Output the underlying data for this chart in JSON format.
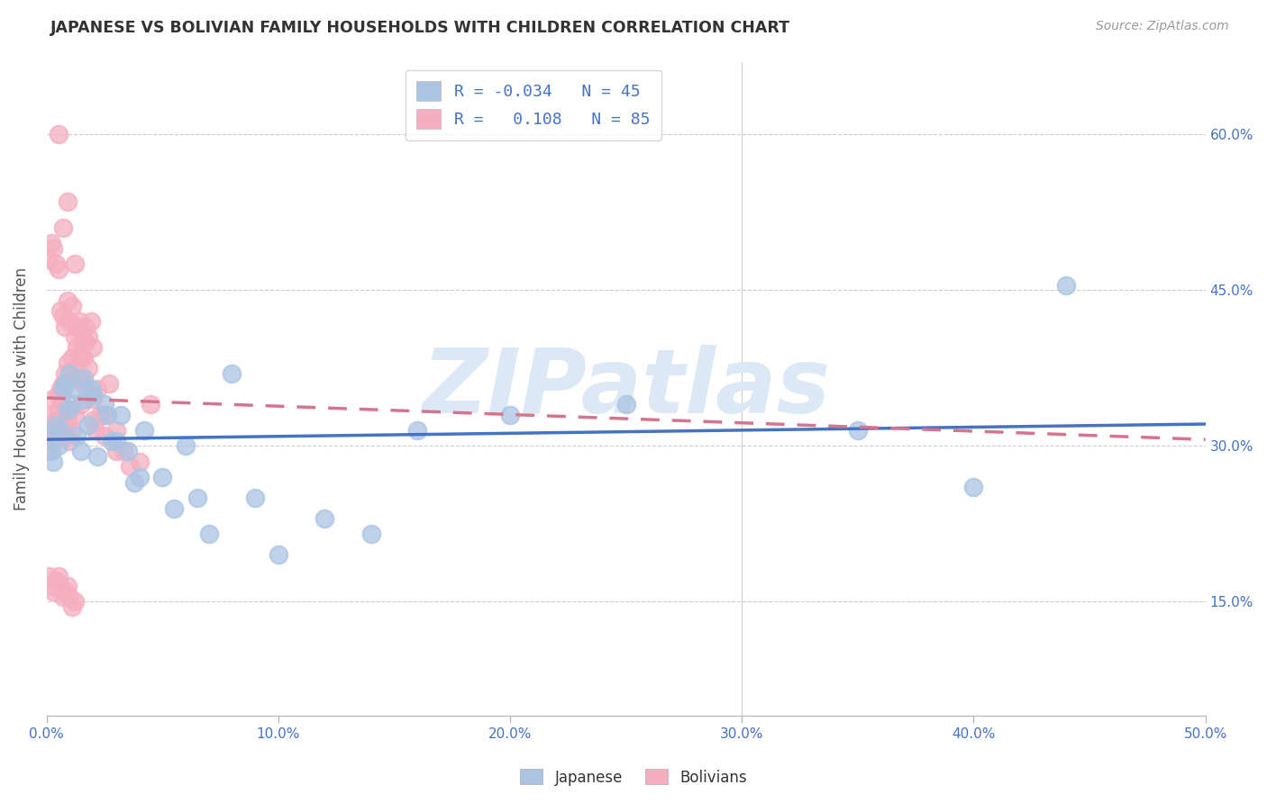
{
  "title": "JAPANESE VS BOLIVIAN FAMILY HOUSEHOLDS WITH CHILDREN CORRELATION CHART",
  "source": "Source: ZipAtlas.com",
  "ylabel_label": "Family Households with Children",
  "xlim": [
    0.0,
    0.5
  ],
  "ylim": [
    0.04,
    0.67
  ],
  "watermark": "ZIPatlas",
  "japanese_color": "#aac4e2",
  "bolivian_color": "#f5aec0",
  "japanese_line_color": "#4472c4",
  "bolivian_line_color": "#d4748e",
  "japanese_x": [
    0.001,
    0.002,
    0.003,
    0.004,
    0.005,
    0.006,
    0.007,
    0.008,
    0.009,
    0.01,
    0.011,
    0.012,
    0.013,
    0.015,
    0.016,
    0.017,
    0.018,
    0.019,
    0.02,
    0.022,
    0.025,
    0.026,
    0.028,
    0.03,
    0.032,
    0.035,
    0.038,
    0.04,
    0.042,
    0.05,
    0.055,
    0.06,
    0.08,
    0.1,
    0.12,
    0.14,
    0.2,
    0.25,
    0.35,
    0.4,
    0.44,
    0.065,
    0.07,
    0.09,
    0.16
  ],
  "japanese_y": [
    0.31,
    0.295,
    0.285,
    0.32,
    0.3,
    0.315,
    0.355,
    0.36,
    0.335,
    0.37,
    0.34,
    0.355,
    0.31,
    0.295,
    0.365,
    0.345,
    0.32,
    0.355,
    0.35,
    0.29,
    0.34,
    0.33,
    0.305,
    0.305,
    0.33,
    0.295,
    0.265,
    0.27,
    0.315,
    0.27,
    0.24,
    0.3,
    0.37,
    0.195,
    0.23,
    0.215,
    0.33,
    0.34,
    0.315,
    0.26,
    0.455,
    0.25,
    0.215,
    0.25,
    0.315
  ],
  "bolivian_x": [
    0.001,
    0.001,
    0.002,
    0.002,
    0.003,
    0.003,
    0.004,
    0.004,
    0.005,
    0.005,
    0.006,
    0.006,
    0.007,
    0.007,
    0.008,
    0.008,
    0.009,
    0.009,
    0.01,
    0.01,
    0.011,
    0.011,
    0.012,
    0.012,
    0.013,
    0.013,
    0.014,
    0.015,
    0.015,
    0.016,
    0.016,
    0.017,
    0.018,
    0.019,
    0.02,
    0.021,
    0.022,
    0.023,
    0.025,
    0.027,
    0.03,
    0.033,
    0.036,
    0.04,
    0.001,
    0.002,
    0.003,
    0.004,
    0.005,
    0.006,
    0.007,
    0.008,
    0.009,
    0.01,
    0.011,
    0.012,
    0.013,
    0.014,
    0.015,
    0.016,
    0.017,
    0.018,
    0.019,
    0.02,
    0.001,
    0.002,
    0.003,
    0.004,
    0.005,
    0.006,
    0.007,
    0.008,
    0.009,
    0.01,
    0.011,
    0.012,
    0.005,
    0.007,
    0.009,
    0.012,
    0.015,
    0.02,
    0.025,
    0.03,
    0.045
  ],
  "bolivian_y": [
    0.31,
    0.295,
    0.32,
    0.33,
    0.305,
    0.345,
    0.315,
    0.325,
    0.335,
    0.35,
    0.345,
    0.355,
    0.36,
    0.32,
    0.37,
    0.31,
    0.325,
    0.38,
    0.335,
    0.305,
    0.385,
    0.315,
    0.365,
    0.33,
    0.375,
    0.395,
    0.365,
    0.385,
    0.34,
    0.385,
    0.36,
    0.4,
    0.375,
    0.35,
    0.345,
    0.315,
    0.355,
    0.33,
    0.33,
    0.36,
    0.315,
    0.295,
    0.28,
    0.285,
    0.48,
    0.495,
    0.49,
    0.475,
    0.47,
    0.43,
    0.425,
    0.415,
    0.44,
    0.42,
    0.435,
    0.405,
    0.415,
    0.42,
    0.41,
    0.4,
    0.415,
    0.405,
    0.42,
    0.395,
    0.175,
    0.165,
    0.16,
    0.17,
    0.175,
    0.165,
    0.155,
    0.16,
    0.165,
    0.155,
    0.145,
    0.15,
    0.6,
    0.51,
    0.535,
    0.475,
    0.39,
    0.325,
    0.31,
    0.295,
    0.34
  ]
}
